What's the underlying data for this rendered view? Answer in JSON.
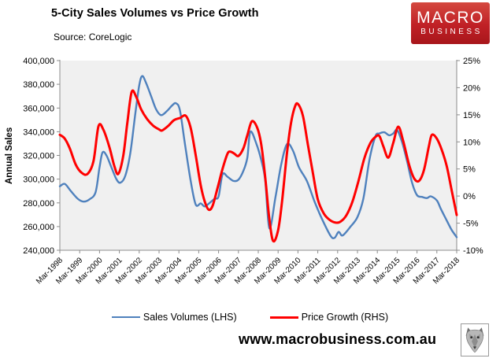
{
  "header": {
    "title": "5-City Sales Volumes vs Price Growth",
    "source": "Source: CoreLogic"
  },
  "logo": {
    "line1": "MACRO",
    "line2": "BUSINESS",
    "bg_color": "#c02026"
  },
  "footer": {
    "url": "www.macrobusiness.com.au"
  },
  "chart_data": {
    "type": "line",
    "title": "5-City Sales Volumes vs Price Growth",
    "source": "Source: CoreLogic",
    "plot_bg": "#f0f0f0",
    "axis_color": "#8c8c8c",
    "grid": false,
    "legend_position": "bottom",
    "x_axis": {
      "unit_note": "x values are years after Mar-1998",
      "range": [
        0,
        20
      ],
      "labels": [
        "Mar-1998",
        "Mar-1999",
        "Mar-2000",
        "Mar-2001",
        "Mar-2002",
        "Mar-2003",
        "Mar-2004",
        "Mar-2005",
        "Mar-2006",
        "Mar-2007",
        "Mar-2008",
        "Mar-2009",
        "Mar-2010",
        "Mar-2011",
        "Mar-2012",
        "Mar-2013",
        "Mar-2014",
        "Mar-2015",
        "Mar-2016",
        "Mar-2017",
        "Mar-2018"
      ]
    },
    "y_left": {
      "label": "Annual Sales",
      "min": 240000,
      "max": 400000,
      "step": 20000,
      "tick_labels": [
        "400,000",
        "380,000",
        "360,000",
        "340,000",
        "320,000",
        "300,000",
        "280,000",
        "260,000",
        "240,000"
      ]
    },
    "y_right": {
      "min": -10,
      "max": 25,
      "step": 5,
      "tick_labels": [
        "25%",
        "20%",
        "15%",
        "10%",
        "5%",
        "0%",
        "-5%",
        "-10%"
      ]
    },
    "series": [
      {
        "name": "Sales Volumes (LHS)",
        "axis": "left",
        "color": "#4f81bd",
        "width": 2.4,
        "points": [
          [
            0,
            294000
          ],
          [
            0.25,
            296000
          ],
          [
            0.55,
            290000
          ],
          [
            0.9,
            283500
          ],
          [
            1.2,
            281000
          ],
          [
            1.5,
            283000
          ],
          [
            1.8,
            289000
          ],
          [
            2.0,
            310000
          ],
          [
            2.15,
            322500
          ],
          [
            2.35,
            320000
          ],
          [
            2.6,
            310000
          ],
          [
            2.85,
            300000
          ],
          [
            3.05,
            297000
          ],
          [
            3.3,
            303000
          ],
          [
            3.55,
            322000
          ],
          [
            3.8,
            355000
          ],
          [
            4.0,
            379000
          ],
          [
            4.15,
            387000
          ],
          [
            4.35,
            381000
          ],
          [
            4.6,
            370000
          ],
          [
            4.85,
            359000
          ],
          [
            5.1,
            354000
          ],
          [
            5.4,
            357500
          ],
          [
            5.65,
            362000
          ],
          [
            5.85,
            364000
          ],
          [
            6.05,
            358000
          ],
          [
            6.3,
            330000
          ],
          [
            6.6,
            298000
          ],
          [
            6.85,
            278500
          ],
          [
            7.1,
            279500
          ],
          [
            7.3,
            277000
          ],
          [
            7.55,
            280000
          ],
          [
            7.8,
            283500
          ],
          [
            8.0,
            285500
          ],
          [
            8.2,
            304000
          ],
          [
            8.45,
            302000
          ],
          [
            8.75,
            298500
          ],
          [
            9.0,
            299500
          ],
          [
            9.25,
            307000
          ],
          [
            9.45,
            318000
          ],
          [
            9.6,
            340000
          ],
          [
            9.9,
            330000
          ],
          [
            10.15,
            316000
          ],
          [
            10.35,
            299000
          ],
          [
            10.56,
            258500
          ],
          [
            10.87,
            285000
          ],
          [
            11.15,
            312000
          ],
          [
            11.45,
            329500
          ],
          [
            11.75,
            324000
          ],
          [
            12.05,
            310000
          ],
          [
            12.45,
            298500
          ],
          [
            12.85,
            280500
          ],
          [
            13.25,
            265000
          ],
          [
            13.65,
            252000
          ],
          [
            13.85,
            250500
          ],
          [
            14.05,
            255500
          ],
          [
            14.25,
            252500
          ],
          [
            14.65,
            260000
          ],
          [
            15.0,
            268000
          ],
          [
            15.3,
            284000
          ],
          [
            15.6,
            316000
          ],
          [
            15.9,
            336000
          ],
          [
            16.1,
            338500
          ],
          [
            16.35,
            339500
          ],
          [
            16.6,
            337000
          ],
          [
            16.8,
            338500
          ],
          [
            17.0,
            341500
          ],
          [
            17.25,
            331000
          ],
          [
            17.5,
            315000
          ],
          [
            17.75,
            297000
          ],
          [
            18.0,
            286500
          ],
          [
            18.25,
            285000
          ],
          [
            18.5,
            284000
          ],
          [
            18.7,
            285500
          ],
          [
            19.0,
            282000
          ],
          [
            19.2,
            275000
          ],
          [
            19.5,
            265000
          ],
          [
            19.75,
            257000
          ],
          [
            20.0,
            251000
          ]
        ]
      },
      {
        "name": "Price Growth (RHS)",
        "axis": "right",
        "color": "#ff0000",
        "width": 3,
        "points": [
          [
            0,
            11.3
          ],
          [
            0.25,
            10.6
          ],
          [
            0.5,
            8.8
          ],
          [
            0.8,
            5.8
          ],
          [
            1.1,
            4.3
          ],
          [
            1.4,
            4.1
          ],
          [
            1.7,
            6.5
          ],
          [
            1.95,
            12.9
          ],
          [
            2.2,
            12.2
          ],
          [
            2.5,
            9.0
          ],
          [
            2.75,
            5.5
          ],
          [
            2.95,
            4.1
          ],
          [
            3.2,
            7.5
          ],
          [
            3.4,
            13.5
          ],
          [
            3.62,
            19.2
          ],
          [
            3.85,
            18.3
          ],
          [
            4.1,
            16.0
          ],
          [
            4.4,
            14.2
          ],
          [
            4.7,
            13.0
          ],
          [
            5.0,
            12.3
          ],
          [
            5.15,
            12.1
          ],
          [
            5.45,
            12.9
          ],
          [
            5.75,
            14.0
          ],
          [
            6.05,
            14.4
          ],
          [
            6.35,
            14.8
          ],
          [
            6.6,
            12.5
          ],
          [
            6.85,
            7.5
          ],
          [
            7.1,
            2.0
          ],
          [
            7.3,
            -1.0
          ],
          [
            7.5,
            -2.5
          ],
          [
            7.7,
            -1.8
          ],
          [
            7.95,
            1.5
          ],
          [
            8.2,
            5.0
          ],
          [
            8.45,
            7.8
          ],
          [
            8.6,
            8.2
          ],
          [
            8.8,
            7.8
          ],
          [
            9.0,
            7.4
          ],
          [
            9.25,
            8.8
          ],
          [
            9.45,
            11.2
          ],
          [
            9.68,
            13.8
          ],
          [
            9.95,
            12.6
          ],
          [
            10.15,
            9.5
          ],
          [
            10.35,
            3.5
          ],
          [
            10.55,
            -4.0
          ],
          [
            10.75,
            -8.3
          ],
          [
            11.0,
            -6.3
          ],
          [
            11.2,
            -1.0
          ],
          [
            11.45,
            8.0
          ],
          [
            11.65,
            13.5
          ],
          [
            11.85,
            16.5
          ],
          [
            12.0,
            17.0
          ],
          [
            12.25,
            14.8
          ],
          [
            12.5,
            9.5
          ],
          [
            12.75,
            4.3
          ],
          [
            13.0,
            -0.6
          ],
          [
            13.3,
            -3.2
          ],
          [
            13.6,
            -4.4
          ],
          [
            13.9,
            -4.9
          ],
          [
            14.15,
            -4.7
          ],
          [
            14.45,
            -3.5
          ],
          [
            14.75,
            -1.0
          ],
          [
            15.05,
            2.8
          ],
          [
            15.35,
            7.0
          ],
          [
            15.65,
            9.8
          ],
          [
            15.9,
            10.9
          ],
          [
            16.1,
            11.1
          ],
          [
            16.3,
            9.2
          ],
          [
            16.55,
            7.1
          ],
          [
            16.8,
            9.8
          ],
          [
            17.05,
            12.8
          ],
          [
            17.3,
            10.2
          ],
          [
            17.6,
            5.8
          ],
          [
            17.85,
            3.3
          ],
          [
            18.1,
            2.8
          ],
          [
            18.35,
            4.8
          ],
          [
            18.6,
            9.2
          ],
          [
            18.75,
            11.3
          ],
          [
            19.0,
            10.6
          ],
          [
            19.25,
            8.5
          ],
          [
            19.5,
            5.5
          ],
          [
            19.75,
            1.0
          ],
          [
            20.0,
            -3.5
          ]
        ]
      }
    ]
  }
}
